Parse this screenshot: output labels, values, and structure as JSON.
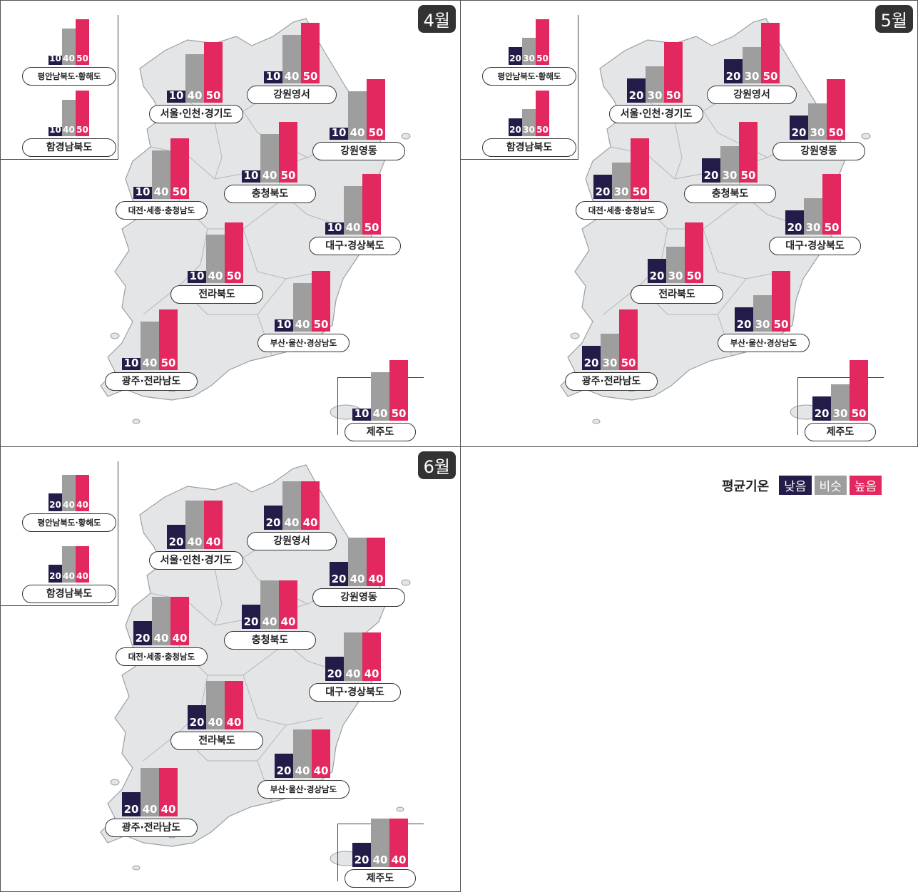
{
  "colors": {
    "low": "#231c48",
    "normal": "#9e9e9e",
    "high": "#e3285f"
  },
  "legend": {
    "title": "평균기온",
    "items": [
      "낮음",
      "비슷",
      "높음"
    ]
  },
  "chart_data": [
    {
      "type": "bar",
      "title": "4월",
      "series_labels": [
        "낮음",
        "비슷",
        "높음"
      ],
      "regions": [
        {
          "name": "평안남북도·황해도",
          "values": [
            10,
            40,
            50
          ]
        },
        {
          "name": "함경남북도",
          "values": [
            10,
            40,
            50
          ]
        },
        {
          "name": "서울·인천·경기도",
          "values": [
            10,
            40,
            50
          ]
        },
        {
          "name": "강원영서",
          "values": [
            10,
            40,
            50
          ]
        },
        {
          "name": "강원영동",
          "values": [
            10,
            40,
            50
          ]
        },
        {
          "name": "대전·세종·충청남도",
          "values": [
            10,
            40,
            50
          ]
        },
        {
          "name": "충청북도",
          "values": [
            10,
            40,
            50
          ]
        },
        {
          "name": "대구·경상북도",
          "values": [
            10,
            40,
            50
          ]
        },
        {
          "name": "전라북도",
          "values": [
            10,
            40,
            50
          ]
        },
        {
          "name": "부산·울산·경상남도",
          "values": [
            10,
            40,
            50
          ]
        },
        {
          "name": "광주·전라남도",
          "values": [
            10,
            40,
            50
          ]
        },
        {
          "name": "제주도",
          "values": [
            10,
            40,
            50
          ]
        }
      ]
    },
    {
      "type": "bar",
      "title": "5월",
      "series_labels": [
        "낮음",
        "비슷",
        "높음"
      ],
      "regions": [
        {
          "name": "평안남북도·황해도",
          "values": [
            20,
            30,
            50
          ]
        },
        {
          "name": "함경남북도",
          "values": [
            20,
            30,
            50
          ]
        },
        {
          "name": "서울·인천·경기도",
          "values": [
            20,
            30,
            50
          ]
        },
        {
          "name": "강원영서",
          "values": [
            20,
            30,
            50
          ]
        },
        {
          "name": "강원영동",
          "values": [
            20,
            30,
            50
          ]
        },
        {
          "name": "대전·세종·충청남도",
          "values": [
            20,
            30,
            50
          ]
        },
        {
          "name": "충청북도",
          "values": [
            20,
            30,
            50
          ]
        },
        {
          "name": "대구·경상북도",
          "values": [
            20,
            30,
            50
          ]
        },
        {
          "name": "전라북도",
          "values": [
            20,
            30,
            50
          ]
        },
        {
          "name": "부산·울산·경상남도",
          "values": [
            20,
            30,
            50
          ]
        },
        {
          "name": "광주·전라남도",
          "values": [
            20,
            30,
            50
          ]
        },
        {
          "name": "제주도",
          "values": [
            20,
            30,
            50
          ]
        }
      ]
    },
    {
      "type": "bar",
      "title": "6월",
      "series_labels": [
        "낮음",
        "비슷",
        "높음"
      ],
      "regions": [
        {
          "name": "평안남북도·황해도",
          "values": [
            20,
            40,
            40
          ]
        },
        {
          "name": "함경남북도",
          "values": [
            20,
            40,
            40
          ]
        },
        {
          "name": "서울·인천·경기도",
          "values": [
            20,
            40,
            40
          ]
        },
        {
          "name": "강원영서",
          "values": [
            20,
            40,
            40
          ]
        },
        {
          "name": "강원영동",
          "values": [
            20,
            40,
            40
          ]
        },
        {
          "name": "대전·세종·충청남도",
          "values": [
            20,
            40,
            40
          ]
        },
        {
          "name": "충청북도",
          "values": [
            20,
            40,
            40
          ]
        },
        {
          "name": "대구·경상북도",
          "values": [
            20,
            40,
            40
          ]
        },
        {
          "name": "전라북도",
          "values": [
            20,
            40,
            40
          ]
        },
        {
          "name": "부산·울산·경상남도",
          "values": [
            20,
            40,
            40
          ]
        },
        {
          "name": "광주·전라남도",
          "values": [
            20,
            40,
            40
          ]
        },
        {
          "name": "제주도",
          "values": [
            20,
            40,
            40
          ]
        }
      ]
    }
  ]
}
